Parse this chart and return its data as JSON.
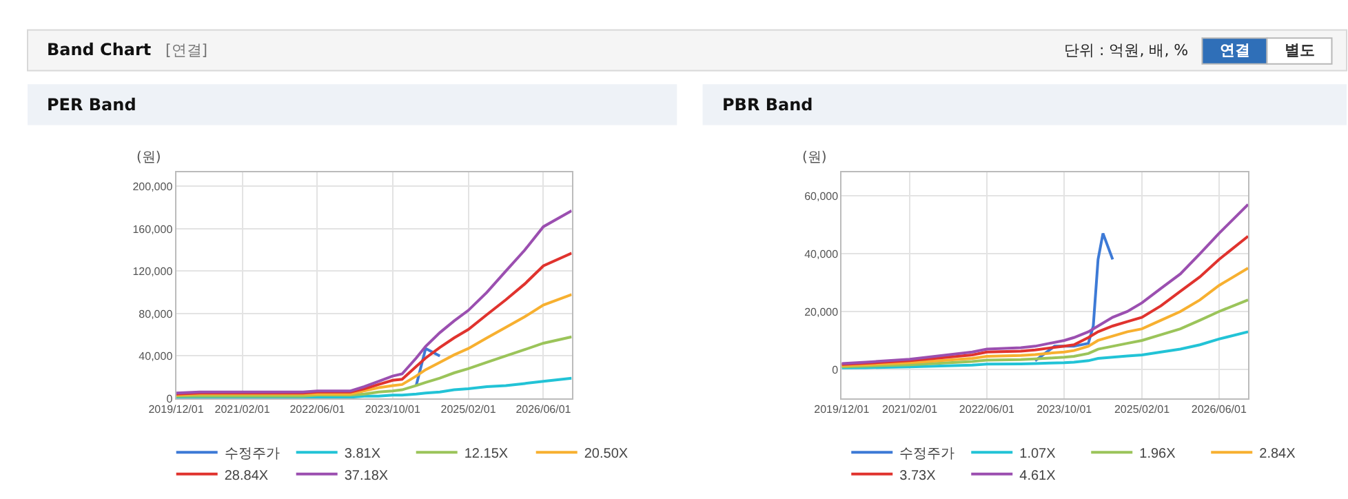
{
  "chart_data": [
    {
      "type": "other",
      "title": "Band Chart",
      "annotations": [
        "[연결]",
        "단위 : 억원, 배, %",
        "연결",
        "별도"
      ]
    },
    {
      "type": "line",
      "title": "PER Band",
      "ylabel": "(원)",
      "grid": true,
      "legend": "bottom",
      "marker": "none",
      "line_style": "solid",
      "x": [
        "2019-12-01",
        "2020-05-01",
        "2021-02-01",
        "2022-03-01",
        "2022-06-01",
        "2023-01-01",
        "2023-04-01",
        "2023-07-01",
        "2023-10-01",
        "2023-12-01",
        "2024-03-01",
        "2024-05-01",
        "2024-08-01",
        "2024-11-01",
        "2025-02-01",
        "2025-06-01",
        "2025-10-01",
        "2026-02-01",
        "2026-06-01",
        "2026-12-01"
      ],
      "xlim": [
        "2019-12-01",
        "2026-12-01"
      ],
      "xticks": [
        {
          "value": "2019-12-01",
          "label": "2019/12/01"
        },
        {
          "value": "2021-02-01",
          "label": "2021/02/01"
        },
        {
          "value": "2022-06-01",
          "label": "2022/06/01"
        },
        {
          "value": "2023-10-01",
          "label": "2023/10/01"
        },
        {
          "value": "2025-02-01",
          "label": "2025/02/01"
        },
        {
          "value": "2026-06-01",
          "label": "2026/06/01"
        }
      ],
      "ylim": [
        0,
        213000
      ],
      "yticks": [
        0,
        {
          "value": 40000,
          "label": "40,000"
        },
        {
          "value": 80000,
          "label": "80,000"
        },
        {
          "value": 120000,
          "label": "120,000"
        },
        {
          "value": 160000,
          "label": "160,000"
        },
        {
          "value": 200000,
          "label": "200,000"
        }
      ],
      "series": [
        {
          "name": "수정주가",
          "color": "#3d7ad6",
          "x": [
            "2024-03-01",
            "2024-05-01",
            "2024-08-01"
          ],
          "values": [
            12000,
            47000,
            40000
          ]
        },
        {
          "name": "3.81X",
          "color": "#22c3d6",
          "values": [
            1000,
            1000,
            1000,
            1000,
            1000,
            1000,
            2000,
            2000,
            3000,
            3000,
            4000,
            5000,
            6000,
            8000,
            9000,
            11000,
            12000,
            14000,
            16000,
            19000
          ]
        },
        {
          "name": "12.15X",
          "color": "#9bc45a",
          "values": [
            2000,
            2000,
            2000,
            2000,
            3000,
            3000,
            4000,
            6000,
            7000,
            8000,
            12000,
            15000,
            19000,
            24000,
            28000,
            34000,
            40000,
            46000,
            52000,
            58000
          ]
        },
        {
          "name": "20.50X",
          "color": "#f7b030",
          "values": [
            3000,
            4000,
            4000,
            4000,
            4000,
            4000,
            7000,
            10000,
            12000,
            13000,
            21000,
            27000,
            34000,
            41000,
            47000,
            57000,
            67000,
            77000,
            88000,
            98000
          ]
        },
        {
          "name": "28.84X",
          "color": "#e0332e",
          "values": [
            4000,
            5000,
            5000,
            5000,
            6000,
            6000,
            9000,
            13000,
            17000,
            18000,
            30000,
            38000,
            48000,
            57000,
            65000,
            79000,
            93000,
            108000,
            125000,
            137000
          ]
        },
        {
          "name": "37.18X",
          "color": "#9b4fb0",
          "values": [
            5000,
            6000,
            6000,
            6000,
            7000,
            7000,
            11000,
            16000,
            21000,
            23000,
            38000,
            49000,
            62000,
            73000,
            83000,
            100000,
            120000,
            140000,
            162000,
            177000
          ]
        }
      ]
    },
    {
      "type": "line",
      "title": "PBR Band",
      "ylabel": "(원)",
      "grid": true,
      "legend": "bottom",
      "marker": "none",
      "line_style": "solid",
      "x": [
        "2019-12-01",
        "2020-05-01",
        "2021-02-01",
        "2022-03-01",
        "2022-06-01",
        "2023-01-01",
        "2023-04-01",
        "2023-07-01",
        "2023-10-01",
        "2023-12-01",
        "2024-03-01",
        "2024-05-01",
        "2024-08-01",
        "2024-11-01",
        "2025-02-01",
        "2025-06-01",
        "2025-10-01",
        "2026-02-01",
        "2026-06-01",
        "2026-12-01"
      ],
      "xlim": [
        "2019-12-01",
        "2026-12-01"
      ],
      "xticks": [
        {
          "value": "2019-12-01",
          "label": "2019/12/01"
        },
        {
          "value": "2021-02-01",
          "label": "2021/02/01"
        },
        {
          "value": "2022-06-01",
          "label": "2022/06/01"
        },
        {
          "value": "2023-10-01",
          "label": "2023/10/01"
        },
        {
          "value": "2025-02-01",
          "label": "2025/02/01"
        },
        {
          "value": "2026-06-01",
          "label": "2026/06/01"
        }
      ],
      "ylim": [
        -10000,
        68000
      ],
      "yticks": [
        0,
        {
          "value": 20000,
          "label": "20,000"
        },
        {
          "value": 40000,
          "label": "40,000"
        },
        {
          "value": 60000,
          "label": "60,000"
        }
      ],
      "series": [
        {
          "name": "수정주가",
          "color": "#3d7ad6",
          "x": [
            "2023-04-01",
            "2023-08-01",
            "2023-12-01",
            "2024-03-01",
            "2024-04-01",
            "2024-05-01",
            "2024-06-01",
            "2024-08-01"
          ],
          "values": [
            3000,
            8000,
            8000,
            9000,
            15000,
            38000,
            47000,
            38000
          ]
        },
        {
          "name": "1.07X",
          "color": "#22c3d6",
          "values": [
            500,
            600,
            900,
            1500,
            1800,
            1900,
            2000,
            2200,
            2300,
            2500,
            3000,
            3800,
            4200,
            4600,
            5000,
            6000,
            7000,
            8500,
            10500,
            13000
          ]
        },
        {
          "name": "1.96X",
          "color": "#9bc45a",
          "values": [
            900,
            1100,
            1600,
            2700,
            3200,
            3400,
            3600,
            3900,
            4200,
            4500,
            5500,
            7000,
            8000,
            9000,
            10000,
            12000,
            14000,
            17000,
            20000,
            24000
          ]
        },
        {
          "name": "2.84X",
          "color": "#f7b030",
          "values": [
            1300,
            1600,
            2300,
            3800,
            4500,
            4800,
            5100,
            5600,
            6000,
            6500,
            8000,
            10000,
            11500,
            13000,
            14000,
            17000,
            20000,
            24000,
            29000,
            35000
          ]
        },
        {
          "name": "3.73X",
          "color": "#e0332e",
          "values": [
            1700,
            2100,
            3000,
            5000,
            6000,
            6300,
            6700,
            7400,
            8000,
            8500,
            11000,
            13000,
            15000,
            16500,
            18000,
            22000,
            27000,
            32000,
            38000,
            46000
          ]
        },
        {
          "name": "4.61X",
          "color": "#9b4fb0",
          "values": [
            2000,
            2500,
            3500,
            6000,
            7000,
            7500,
            8000,
            9000,
            10000,
            11000,
            13000,
            15000,
            18000,
            20000,
            23000,
            28000,
            33000,
            40000,
            47000,
            57000
          ]
        }
      ]
    }
  ]
}
